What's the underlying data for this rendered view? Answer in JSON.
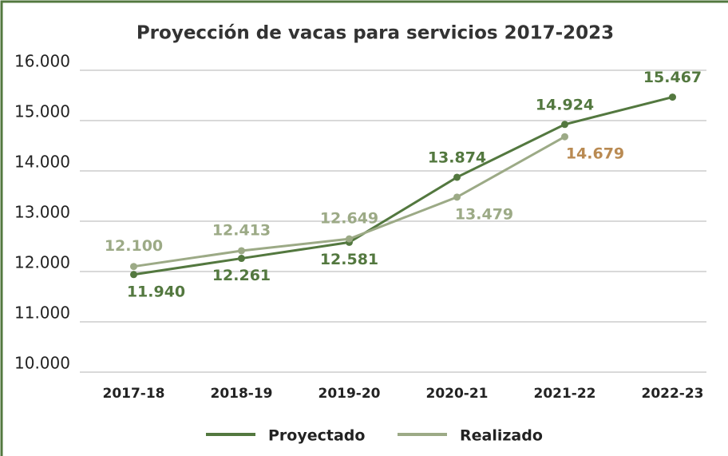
{
  "chart_data": {
    "type": "line",
    "title": "Proyección de vacas para servicios 2017-2023",
    "categories": [
      "2017-18",
      "2018-19",
      "2019-20",
      "2020-21",
      "2021-22",
      "2022-23"
    ],
    "series": [
      {
        "name": "Proyectado",
        "color": "#53783f",
        "values": [
          11940,
          12261,
          12581,
          13874,
          14924,
          15467
        ],
        "value_labels": [
          "11.940",
          "12.261",
          "12.581",
          "13.874",
          "14.924",
          "15.467"
        ],
        "value_label_colors": [
          "#53783f",
          "#53783f",
          "#53783f",
          "#53783f",
          "#53783f",
          "#53783f"
        ]
      },
      {
        "name": "Realizado",
        "color": "#9caa86",
        "values": [
          12100,
          12413,
          12649,
          13479,
          14679,
          null
        ],
        "value_labels": [
          "12.100",
          "12.413",
          "12.649",
          "13.479",
          "14.679",
          null
        ],
        "value_label_colors": [
          "#9caa86",
          "#9caa86",
          "#9caa86",
          "#9caa86",
          "#b98a52",
          null
        ]
      }
    ],
    "ylim": [
      10000,
      16000
    ],
    "yticks": [
      {
        "value": 10000,
        "label": "10.000"
      },
      {
        "value": 11000,
        "label": "11.000"
      },
      {
        "value": 12000,
        "label": "12.000"
      },
      {
        "value": 13000,
        "label": "13.000"
      },
      {
        "value": 14000,
        "label": "14.000"
      },
      {
        "value": 15000,
        "label": "15.000"
      },
      {
        "value": 16000,
        "label": "16.000"
      }
    ],
    "grid": true,
    "legend": "bottom"
  }
}
